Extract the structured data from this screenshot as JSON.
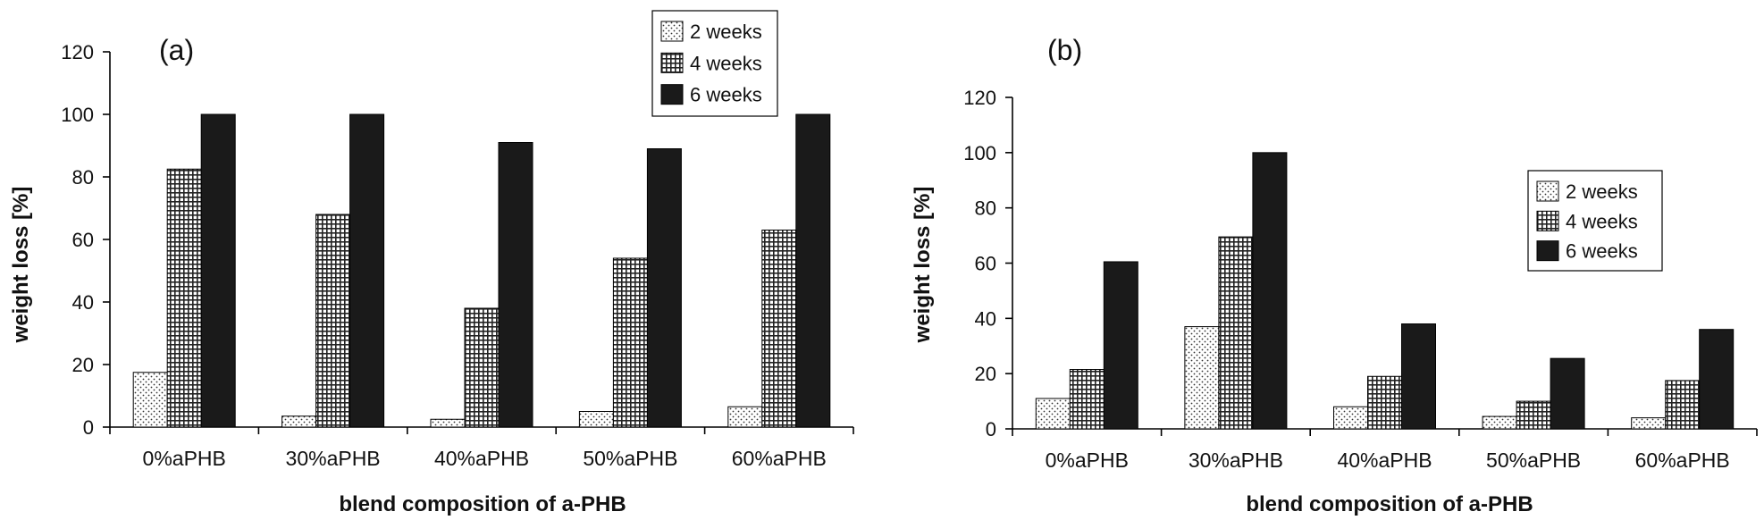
{
  "chart_data": [
    {
      "type": "bar",
      "panel_label": "(a)",
      "categories": [
        "0%aPHB",
        "30%aPHB",
        "40%aPHB",
        "50%aPHB",
        "60%aPHB"
      ],
      "series": [
        {
          "name": "2  weeks",
          "pattern": "dots",
          "values": [
            17.5,
            3.5,
            2.5,
            5,
            6.5
          ]
        },
        {
          "name": "4 weeks",
          "pattern": "grid",
          "values": [
            82.5,
            68,
            38,
            54,
            63
          ]
        },
        {
          "name": "6 weeks",
          "pattern": "solid",
          "values": [
            100,
            100,
            91,
            89,
            100
          ]
        }
      ],
      "xlabel": "blend composition of a-PHB",
      "ylabel": "weight loss [%]",
      "ylim": [
        0,
        120
      ],
      "yticks": [
        0,
        20,
        40,
        60,
        80,
        100,
        120
      ],
      "legend_position": "top-right",
      "grid": false
    },
    {
      "type": "bar",
      "panel_label": "(b)",
      "categories": [
        "0%aPHB",
        "30%aPHB",
        "40%aPHB",
        "50%aPHB",
        "60%aPHB"
      ],
      "series": [
        {
          "name": "2  weeks",
          "pattern": "dots",
          "values": [
            11,
            37,
            8,
            4.5,
            4
          ]
        },
        {
          "name": "4 weeks",
          "pattern": "grid",
          "values": [
            21.5,
            69.5,
            19,
            10,
            17.5
          ]
        },
        {
          "name": "6 weeks",
          "pattern": "solid",
          "values": [
            60.5,
            100,
            38,
            25.5,
            36
          ]
        }
      ],
      "xlabel": "blend composition of a-PHB",
      "ylabel": "weight loss [%]",
      "ylim": [
        0,
        120
      ],
      "yticks": [
        0,
        20,
        40,
        60,
        80,
        100,
        120
      ],
      "legend_position": "right",
      "grid": false
    }
  ],
  "colors": {
    "bar_fill": "#1a1a1a",
    "pattern_ink": "#222222",
    "background": "#ffffff"
  }
}
